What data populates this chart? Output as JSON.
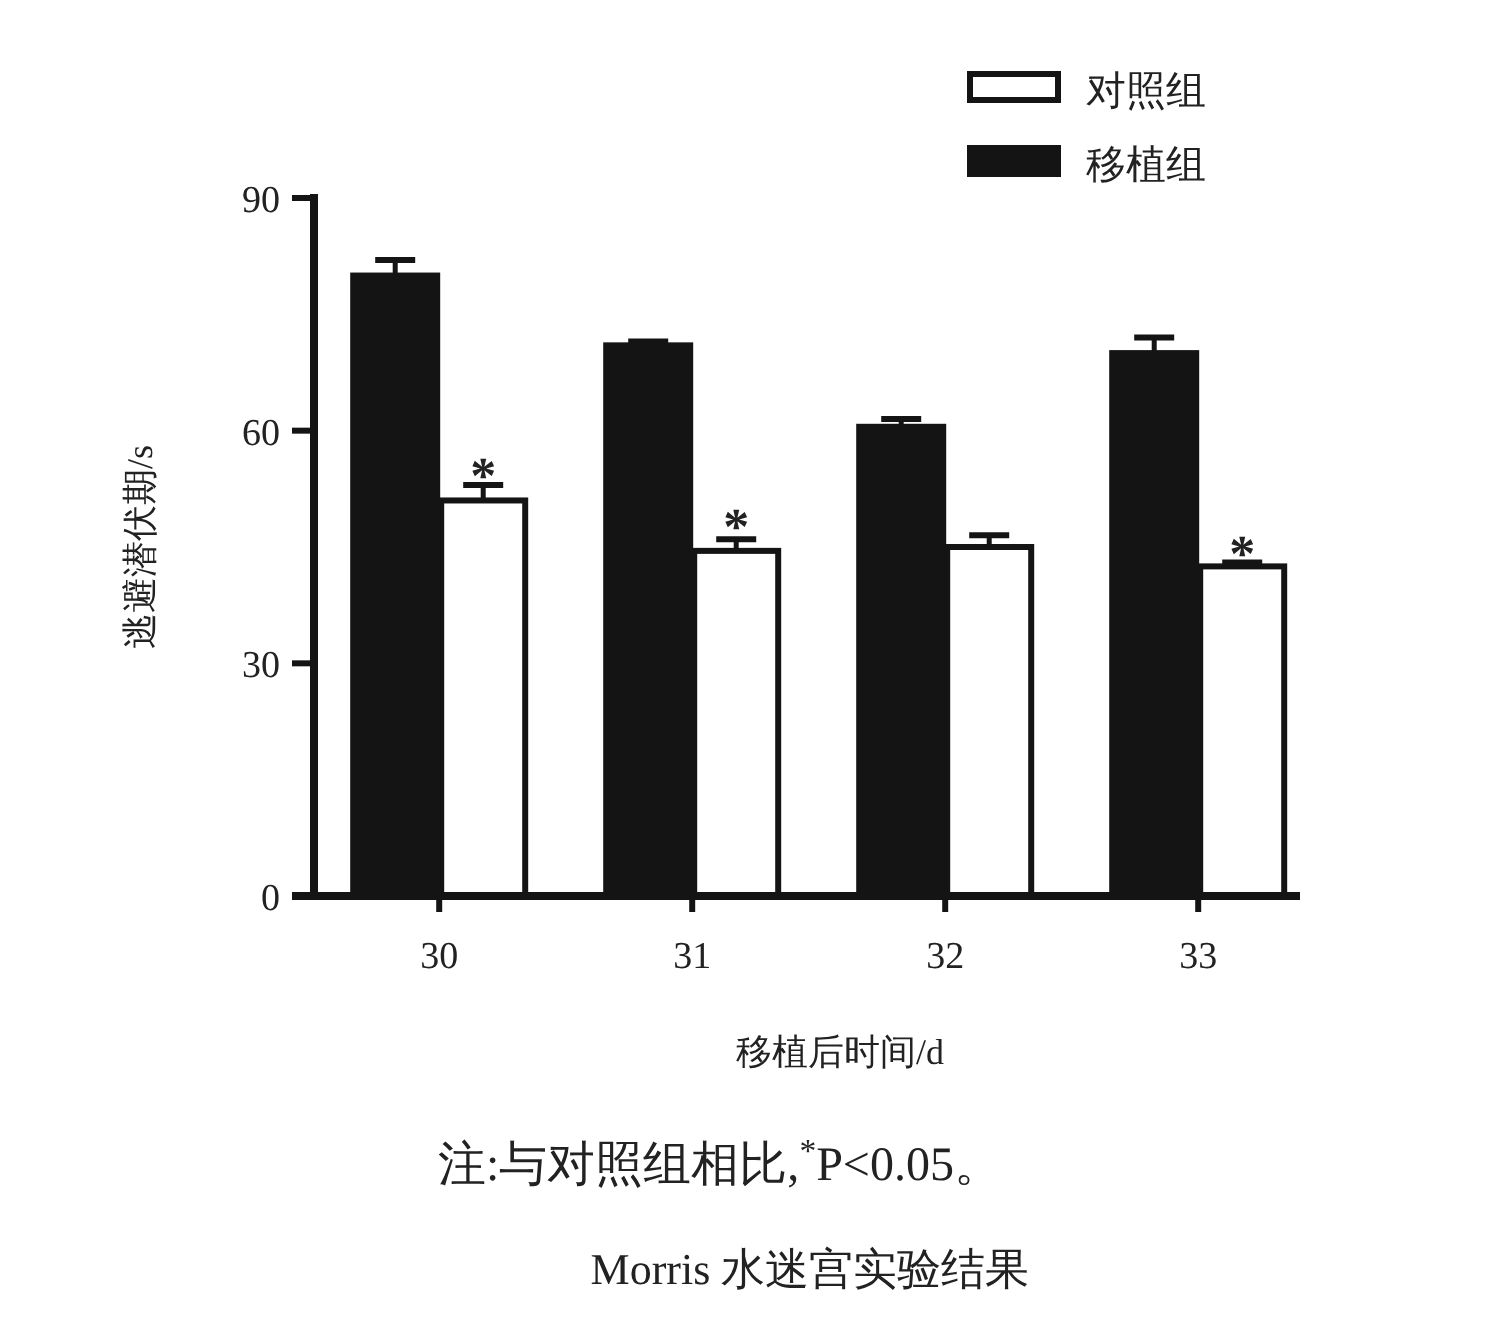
{
  "chart_data": {
    "type": "bar",
    "title": "Morris 水迷宫实验结果",
    "xlabel": "移植后时间/d",
    "ylabel": "逃避潜伏期/s",
    "categories": [
      "30",
      "31",
      "32",
      "33"
    ],
    "series": [
      {
        "name": "移植组",
        "color": "#141414",
        "values": [
          80,
          71,
          60.5,
          70
        ],
        "errors": [
          [
            80,
            82
          ],
          [
            71,
            71.5
          ],
          [
            60.5,
            61.5
          ],
          [
            70,
            72
          ]
        ]
      },
      {
        "name": "对照组",
        "color": "#ffffff",
        "values": [
          51,
          44.5,
          45,
          42.5
        ],
        "errors": [
          [
            51,
            53
          ],
          [
            44.5,
            46
          ],
          [
            45,
            46.5
          ],
          [
            42.5,
            43
          ]
        ]
      }
    ],
    "ylim": [
      0,
      90
    ],
    "yticks": [
      0,
      30,
      60,
      90
    ],
    "legend": "top right",
    "grid": false,
    "annotations": [
      {
        "text": "*",
        "x": "30",
        "y": 55
      },
      {
        "text": "*",
        "x": "31",
        "y": 48.5
      },
      {
        "text": "*",
        "x": "33",
        "y": 45
      },
      "注:与对照组相比,$^{*}$P<0.05。"
    ]
  }
}
